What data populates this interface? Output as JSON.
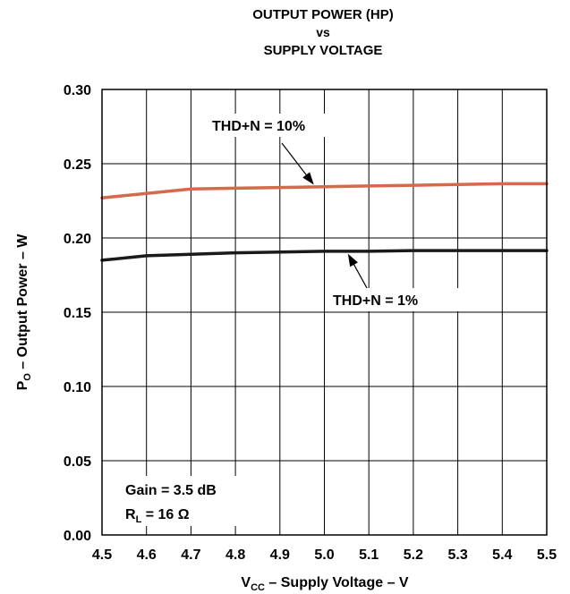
{
  "chart_data": {
    "type": "line",
    "title_lines": [
      "OUTPUT POWER (HP)",
      "vs",
      "SUPPLY VOLTAGE"
    ],
    "xlabel": {
      "base": "V",
      "sub": "CC",
      "rest": " – Supply Voltage – V"
    },
    "ylabel": {
      "base": "P",
      "sub": "O",
      "rest": " – Output Power – W"
    },
    "xlim": [
      4.5,
      5.5
    ],
    "ylim": [
      0,
      0.3
    ],
    "x_ticks": [
      "4.5",
      "4.6",
      "4.7",
      "4.8",
      "4.9",
      "5.0",
      "5.1",
      "5.2",
      "5.3",
      "5.4",
      "5.5"
    ],
    "y_ticks": [
      "0.00",
      "0.05",
      "0.10",
      "0.15",
      "0.20",
      "0.25",
      "0.30"
    ],
    "grid": true,
    "series": [
      {
        "name": "THD+N = 10%",
        "color": "#d46a4a",
        "x": [
          4.5,
          4.6,
          4.7,
          4.8,
          4.9,
          5.0,
          5.1,
          5.2,
          5.3,
          5.4,
          5.5
        ],
        "y": [
          0.227,
          0.23,
          0.233,
          0.2335,
          0.234,
          0.2345,
          0.235,
          0.2355,
          0.236,
          0.2365,
          0.2365
        ]
      },
      {
        "name": "THD+N = 1%",
        "color": "#1a1a1a",
        "x": [
          4.5,
          4.6,
          4.7,
          4.8,
          4.9,
          5.0,
          5.1,
          5.2,
          5.3,
          5.4,
          5.5
        ],
        "y": [
          0.185,
          0.188,
          0.189,
          0.19,
          0.1905,
          0.191,
          0.191,
          0.1915,
          0.1915,
          0.1915,
          0.1915
        ]
      }
    ],
    "annotations": [
      {
        "text": "THD+N = 10%",
        "series_index": 0,
        "arrow_to_x": 4.98
      },
      {
        "text": "THD+N = 1%",
        "series_index": 1,
        "arrow_to_x": 5.05
      }
    ],
    "notes": [
      {
        "base": "Gain = 3.5 dB"
      },
      {
        "base": "R",
        "sub": "L",
        "rest": " = 16 Ω"
      }
    ]
  }
}
